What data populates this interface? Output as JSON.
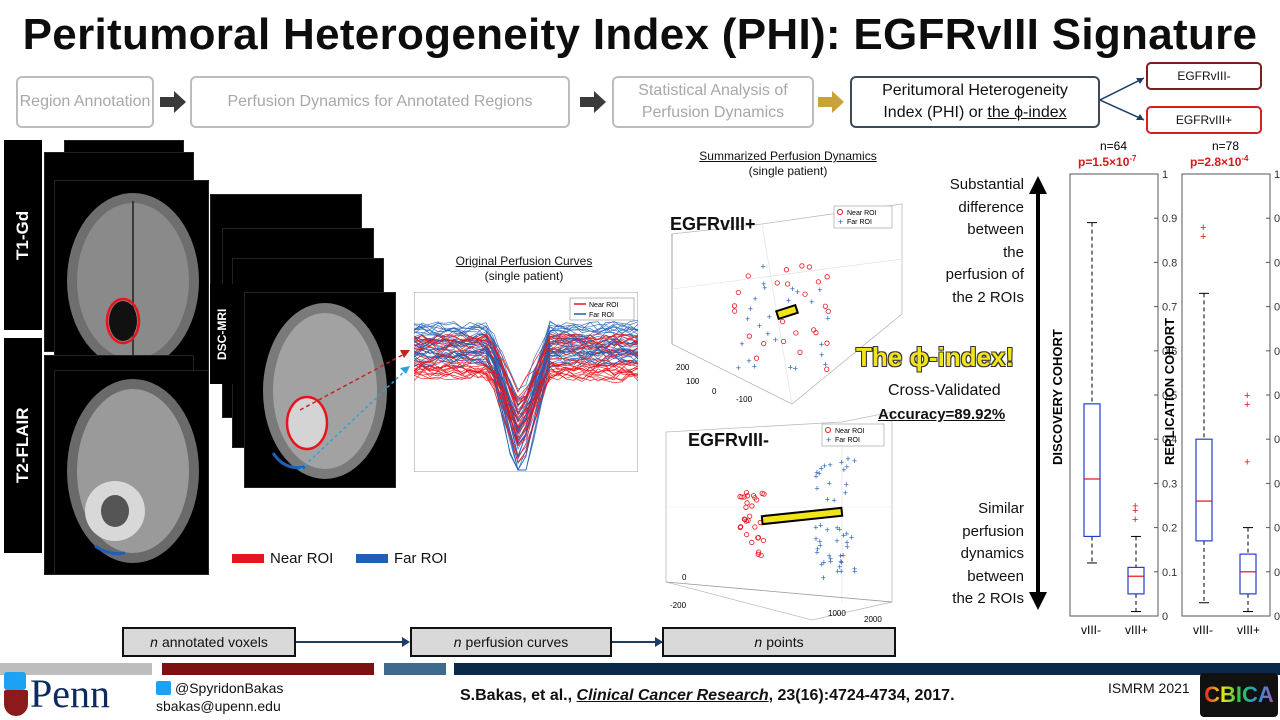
{
  "title": "Peritumoral Heterogeneity Index (PHI): EGFRvIII Signature",
  "flow": {
    "step1": "Region Annotation",
    "step2": "Perfusion Dynamics for Annotated Regions",
    "step3": "Statistical Analysis of Perfusion Dynamics",
    "step4_line1": "Peritumoral Heterogeneity",
    "step4_line2a": "Index (PHI) or ",
    "step4_line2b": "the ϕ-index",
    "out_neg": "EGFRvIII-",
    "out_pos": "EGFRvIII+"
  },
  "mri": {
    "t1": "T1-Gd",
    "t2": "T2-FLAIR",
    "dsc": "DSC-MRI"
  },
  "roi_legend": {
    "near": "Near ROI",
    "far": "Far ROI"
  },
  "colors": {
    "near": "#e8141c",
    "far": "#1f5fb4",
    "maroon": "#7b1111",
    "navy": "#0b2a4a",
    "steel": "#3e6a8f",
    "yellow": "#f3e41a"
  },
  "curves": {
    "title": "Original Perfusion Curves",
    "subtitle": "(single patient)",
    "legend_near": "Near ROI",
    "legend_far": "Far ROI"
  },
  "scatter": {
    "title": "Summarized Perfusion Dynamics",
    "subtitle": "(single patient)",
    "pos_label": "EGFRvIII+",
    "neg_label": "EGFRvIII-",
    "legend_near": "Near ROI",
    "legend_far": "Far ROI",
    "pos_ticks": [
      "200",
      "100",
      "0",
      "-100"
    ],
    "neg_ticks": [
      "0",
      "-200",
      "1000",
      "2000"
    ]
  },
  "middle": {
    "substantial": [
      "Substantial",
      "difference",
      "between",
      "the",
      "perfusion of",
      "the 2 ROIs"
    ],
    "phi": "The ϕ-index!",
    "cv": "Cross-Validated",
    "accuracy": "Accuracy=89.92%",
    "similar": [
      "Similar",
      "perfusion",
      "dynamics",
      "between",
      "the 2 ROIs"
    ]
  },
  "chart_data": [
    {
      "type": "box",
      "ylabel": "DISCOVERY COHORT",
      "n": "n=64",
      "p_base": "p=1.5×10",
      "p_exp": "-7",
      "categories": [
        "vIII-",
        "vIII+"
      ],
      "boxes": [
        {
          "category": "vIII-",
          "whisker_low": 0.12,
          "q1": 0.18,
          "median": 0.31,
          "q3": 0.48,
          "whisker_high": 0.89,
          "outliers": []
        },
        {
          "category": "vIII+",
          "whisker_low": 0.01,
          "q1": 0.05,
          "median": 0.09,
          "q3": 0.11,
          "whisker_high": 0.18,
          "outliers": [
            0.22,
            0.24,
            0.25
          ]
        }
      ],
      "yticks": [
        "0",
        "0.1",
        "0.2",
        "0.3",
        "0.4",
        "0.5",
        "0.6",
        "0.7",
        "0.8",
        "0.9",
        "1"
      ],
      "ylim": [
        0,
        1
      ]
    },
    {
      "type": "box",
      "ylabel": "REPLICATION COHORT",
      "n": "n=78",
      "p_base": "p=2.8×10",
      "p_exp": "-4",
      "categories": [
        "vIII-",
        "vIII+"
      ],
      "boxes": [
        {
          "category": "vIII-",
          "whisker_low": 0.03,
          "q1": 0.17,
          "median": 0.26,
          "q3": 0.4,
          "whisker_high": 0.73,
          "outliers": [
            0.86,
            0.88
          ]
        },
        {
          "category": "vIII+",
          "whisker_low": 0.01,
          "q1": 0.05,
          "median": 0.1,
          "q3": 0.14,
          "whisker_high": 0.2,
          "outliers": [
            0.35,
            0.48,
            0.5
          ]
        }
      ],
      "yticks": [
        "0",
        "0.1",
        "0.2",
        "0.3",
        "0.4",
        "0.5",
        "0.6",
        "0.7",
        "0.8",
        "0.9",
        "1"
      ],
      "ylim": [
        0,
        1
      ]
    }
  ],
  "pipeline": {
    "box1_n": "n",
    "box1": "annotated voxels",
    "box2_n": "n",
    "box2": "perfusion curves",
    "box3_n": "n",
    "box3": "points"
  },
  "footer": {
    "penn": "Penn",
    "twitter": "@SpyridonBakas",
    "email": "sbakas@upenn.edu",
    "cite_prefix": "S.Bakas, et al., ",
    "cite_journal": "Clinical Cancer Research",
    "cite_suffix": ", 23(16):4724-4734, 2017.",
    "conf": "ISMRM 2021",
    "cbica": "CBICA"
  }
}
